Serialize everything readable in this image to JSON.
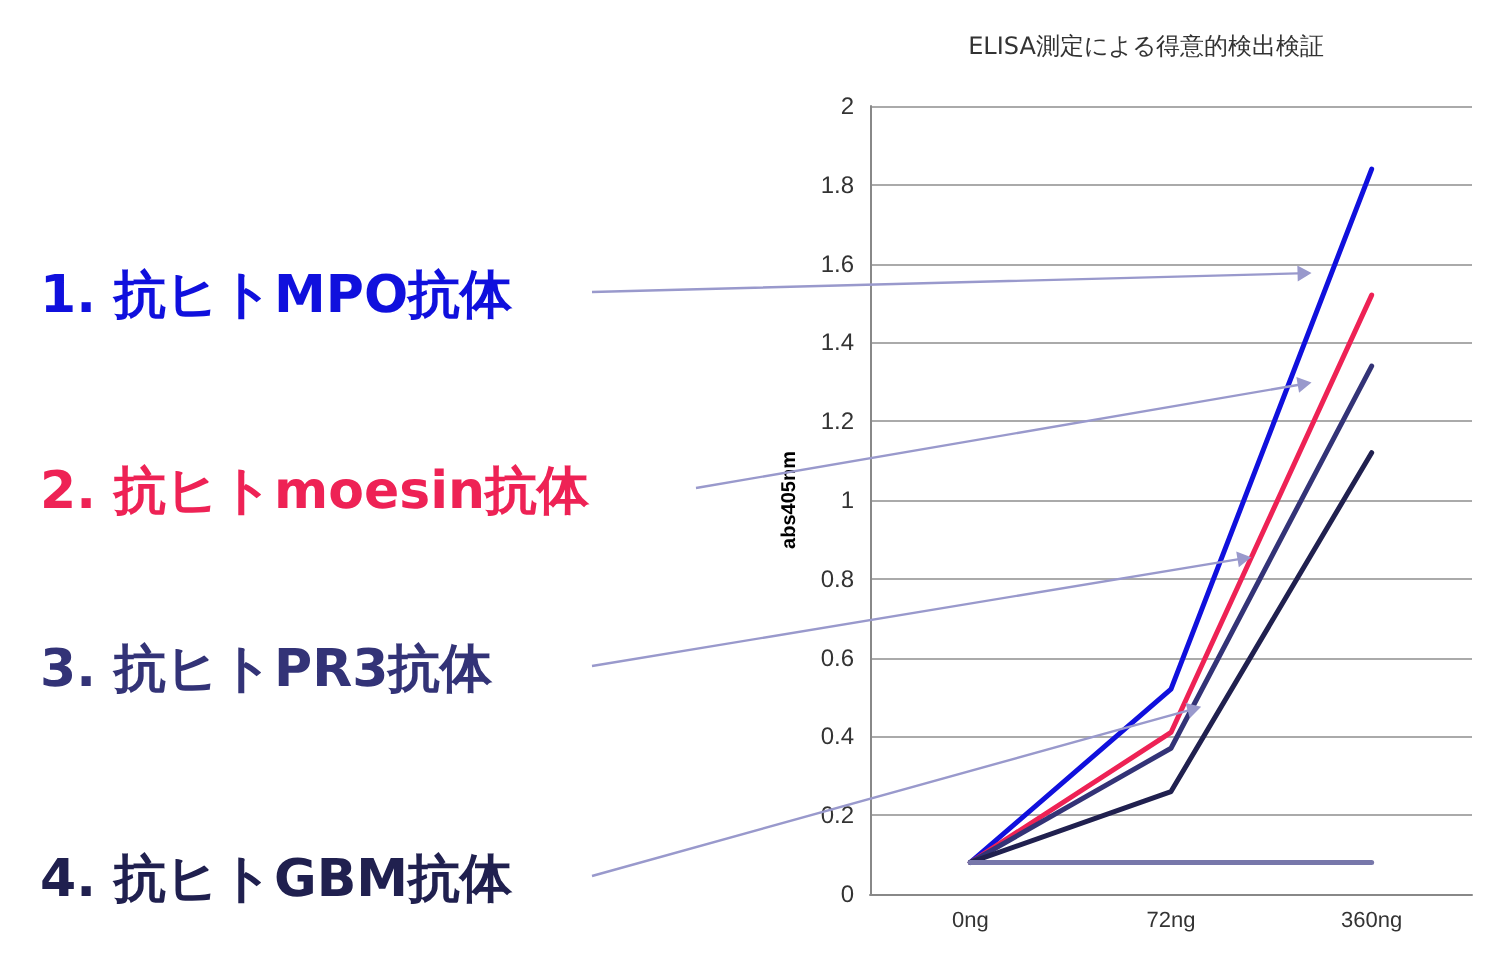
{
  "chart_data": {
    "type": "line",
    "title": "ELISA測定による得意的検出検証",
    "ylabel": "abs405nm",
    "categories": [
      "0ng",
      "72ng",
      "360ng"
    ],
    "series": [
      {
        "name": "1. 抗ヒトMPO抗体",
        "color": "#1010dd",
        "values": [
          0.08,
          0.52,
          1.84
        ]
      },
      {
        "name": "2. 抗ヒトmoesin抗体",
        "color": "#ee2255",
        "values": [
          0.08,
          0.41,
          1.52
        ]
      },
      {
        "name": "3. 抗ヒトPR3抗体",
        "color": "#333377",
        "values": [
          0.08,
          0.37,
          1.34
        ]
      },
      {
        "name": "4. 抗ヒトGBM抗体",
        "color": "#20204f",
        "values": [
          0.08,
          0.26,
          1.12
        ]
      },
      {
        "color": "#7777aa",
        "values": [
          0.08,
          0.08,
          0.08
        ]
      }
    ],
    "ylim": [
      0,
      2
    ],
    "yticks": [
      0,
      0.2,
      0.4,
      0.6,
      0.8,
      1,
      1.2,
      1.4,
      1.6,
      1.8,
      2
    ],
    "grid": "y",
    "marker": "none",
    "line_style": "solid"
  }
}
